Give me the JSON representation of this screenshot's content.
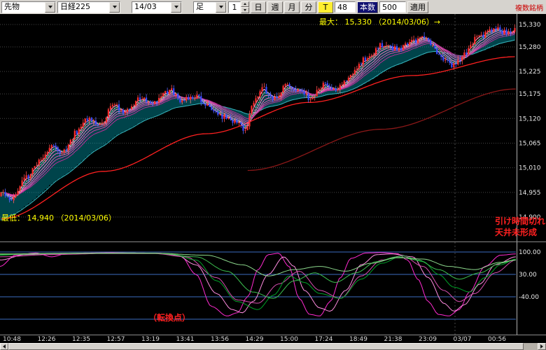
{
  "toolbar": {
    "instrument": "先物",
    "symbol": "日経225",
    "contract": "14/03",
    "bar_type": "足",
    "interval": "1",
    "period_buttons": [
      "日",
      "週",
      "月",
      "分"
    ],
    "tick_button": "T",
    "tick_interval": "48",
    "count_label": "本数",
    "count_value": "500",
    "apply": "適用",
    "multi_symbol": "複数銘柄"
  },
  "main_chart": {
    "max_annotation": "最大： 15,330 （2014/03/06）→",
    "min_annotation": "最低： 14,940 （2014/03/06）",
    "note_lines": [
      "引け時間切れ",
      "天井未形成"
    ],
    "y_axis_labels": [
      "15,330",
      "15,280",
      "15,225",
      "15,175",
      "15,120",
      "15,065",
      "15,010",
      "14,955",
      "14,900"
    ],
    "y_axis_values": [
      15330,
      15280,
      15225,
      15175,
      15120,
      15065,
      15010,
      14955,
      14900
    ]
  },
  "oscillator": {
    "y_axis_labels": [
      "100.00",
      "30.00",
      "-40.00"
    ],
    "y_axis_values": [
      100,
      30,
      -40
    ],
    "annotation": "（転換点）"
  },
  "time_axis": {
    "labels": [
      "10:48",
      "12:26",
      "12:35",
      "12:57",
      "13:19",
      "13:41",
      "13:56",
      "14:29",
      "15:00",
      "17:24",
      "18:49",
      "21:38",
      "23:09",
      "03/07",
      "00:56"
    ]
  },
  "chart_data": {
    "type": "candlestick",
    "candle_count": 245,
    "y_range": [
      14860,
      15345
    ],
    "price_anchors": [
      [
        0.0,
        14952
      ],
      [
        0.02,
        14940
      ],
      [
        0.05,
        14992
      ],
      [
        0.08,
        15032
      ],
      [
        0.1,
        15062
      ],
      [
        0.12,
        15046
      ],
      [
        0.15,
        15092
      ],
      [
        0.17,
        15122
      ],
      [
        0.19,
        15102
      ],
      [
        0.22,
        15150
      ],
      [
        0.24,
        15136
      ],
      [
        0.27,
        15162
      ],
      [
        0.3,
        15156
      ],
      [
        0.33,
        15182
      ],
      [
        0.35,
        15162
      ],
      [
        0.38,
        15168
      ],
      [
        0.41,
        15142
      ],
      [
        0.44,
        15120
      ],
      [
        0.46,
        15108
      ],
      [
        0.475,
        15094
      ],
      [
        0.49,
        15152
      ],
      [
        0.51,
        15186
      ],
      [
        0.53,
        15166
      ],
      [
        0.56,
        15196
      ],
      [
        0.58,
        15186
      ],
      [
        0.6,
        15166
      ],
      [
        0.63,
        15196
      ],
      [
        0.65,
        15182
      ],
      [
        0.68,
        15216
      ],
      [
        0.71,
        15256
      ],
      [
        0.74,
        15282
      ],
      [
        0.77,
        15276
      ],
      [
        0.8,
        15292
      ],
      [
        0.82,
        15302
      ],
      [
        0.84,
        15282
      ],
      [
        0.86,
        15252
      ],
      [
        0.88,
        15238
      ],
      [
        0.9,
        15262
      ],
      [
        0.93,
        15302
      ],
      [
        0.96,
        15322
      ],
      [
        0.98,
        15312
      ],
      [
        1.0,
        15322
      ]
    ],
    "ma_long_red_anchors": [
      [
        0,
        14896
      ],
      [
        0.2,
        15002
      ],
      [
        0.4,
        15086
      ],
      [
        0.6,
        15156
      ],
      [
        0.8,
        15216
      ],
      [
        1,
        15258
      ]
    ],
    "ma_long_dark_anchors": [
      [
        0,
        15004
      ],
      [
        0.5,
        15096
      ],
      [
        1,
        15186
      ]
    ],
    "ma_dark_x_range": [
      0.48,
      1
    ],
    "ribbon_spans": [
      3,
      5,
      7,
      10,
      13,
      16,
      20
    ],
    "cloud_spans": [
      4,
      40
    ],
    "green_span": 5,
    "oscillator": {
      "type": "line",
      "y_range": [
        -150,
        115
      ],
      "gridlines": [
        100,
        30,
        -40,
        -110
      ],
      "series": [
        {
          "name": "magenta-1",
          "color": "#ff2ad0",
          "anchors": [
            [
              0,
              55
            ],
            [
              0.03,
              90
            ],
            [
              0.07,
              97
            ],
            [
              0.1,
              85
            ],
            [
              0.13,
              95
            ],
            [
              0.17,
              97
            ],
            [
              0.22,
              98
            ],
            [
              0.27,
              97
            ],
            [
              0.31,
              96
            ],
            [
              0.35,
              88
            ],
            [
              0.38,
              30
            ],
            [
              0.41,
              -70
            ],
            [
              0.44,
              -100
            ],
            [
              0.46,
              -90
            ],
            [
              0.48,
              -40
            ],
            [
              0.5,
              45
            ],
            [
              0.52,
              92
            ],
            [
              0.54,
              96
            ],
            [
              0.56,
              55
            ],
            [
              0.58,
              -45
            ],
            [
              0.6,
              -95
            ],
            [
              0.62,
              -100
            ],
            [
              0.64,
              -55
            ],
            [
              0.66,
              20
            ],
            [
              0.68,
              80
            ],
            [
              0.71,
              97
            ],
            [
              0.74,
              98
            ],
            [
              0.77,
              95
            ],
            [
              0.79,
              75
            ],
            [
              0.81,
              15
            ],
            [
              0.83,
              -55
            ],
            [
              0.85,
              -95
            ],
            [
              0.87,
              -100
            ],
            [
              0.89,
              -80
            ],
            [
              0.91,
              -25
            ],
            [
              0.94,
              55
            ],
            [
              0.97,
              90
            ],
            [
              1,
              94
            ]
          ]
        },
        {
          "name": "magenta-2",
          "color": "#ff8ce0",
          "anchors": [
            [
              0,
              75
            ],
            [
              0.05,
              92
            ],
            [
              0.1,
              94
            ],
            [
              0.15,
              96
            ],
            [
              0.2,
              97
            ],
            [
              0.25,
              97
            ],
            [
              0.3,
              96
            ],
            [
              0.34,
              92
            ],
            [
              0.38,
              60
            ],
            [
              0.42,
              -30
            ],
            [
              0.45,
              -80
            ],
            [
              0.47,
              -90
            ],
            [
              0.49,
              -55
            ],
            [
              0.52,
              30
            ],
            [
              0.55,
              85
            ],
            [
              0.57,
              55
            ],
            [
              0.59,
              -20
            ],
            [
              0.62,
              -75
            ],
            [
              0.64,
              -85
            ],
            [
              0.67,
              -20
            ],
            [
              0.7,
              60
            ],
            [
              0.73,
              92
            ],
            [
              0.76,
              94
            ],
            [
              0.8,
              85
            ],
            [
              0.83,
              20
            ],
            [
              0.86,
              -60
            ],
            [
              0.88,
              -85
            ],
            [
              0.9,
              -65
            ],
            [
              0.93,
              0
            ],
            [
              0.96,
              60
            ],
            [
              1,
              85
            ]
          ]
        },
        {
          "name": "magenta-3",
          "color": "#d84fb0",
          "anchors": [
            [
              0,
              85
            ],
            [
              0.1,
              92
            ],
            [
              0.2,
              95
            ],
            [
              0.3,
              95
            ],
            [
              0.36,
              85
            ],
            [
              0.42,
              20
            ],
            [
              0.46,
              -50
            ],
            [
              0.5,
              -60
            ],
            [
              0.54,
              0
            ],
            [
              0.58,
              40
            ],
            [
              0.62,
              -20
            ],
            [
              0.66,
              -45
            ],
            [
              0.7,
              25
            ],
            [
              0.74,
              75
            ],
            [
              0.78,
              88
            ],
            [
              0.82,
              55
            ],
            [
              0.86,
              -20
            ],
            [
              0.89,
              -55
            ],
            [
              0.92,
              -30
            ],
            [
              0.96,
              35
            ],
            [
              1,
              75
            ]
          ]
        },
        {
          "name": "green-1",
          "color": "#00a028",
          "anchors": [
            [
              0,
              90
            ],
            [
              0.05,
              94
            ],
            [
              0.15,
              96
            ],
            [
              0.25,
              97
            ],
            [
              0.33,
              95
            ],
            [
              0.38,
              75
            ],
            [
              0.42,
              10
            ],
            [
              0.46,
              -55
            ],
            [
              0.5,
              -80
            ],
            [
              0.53,
              -35
            ],
            [
              0.56,
              25
            ],
            [
              0.59,
              5
            ],
            [
              0.62,
              -30
            ],
            [
              0.66,
              -45
            ],
            [
              0.7,
              15
            ],
            [
              0.74,
              65
            ],
            [
              0.78,
              88
            ],
            [
              0.82,
              70
            ],
            [
              0.85,
              30
            ],
            [
              0.88,
              -10
            ],
            [
              0.91,
              -25
            ],
            [
              0.94,
              20
            ],
            [
              0.97,
              60
            ],
            [
              1,
              78
            ]
          ]
        },
        {
          "name": "green-2",
          "color": "#3cc050",
          "anchors": [
            [
              0,
              92
            ],
            [
              0.1,
              95
            ],
            [
              0.2,
              96
            ],
            [
              0.3,
              96
            ],
            [
              0.38,
              85
            ],
            [
              0.44,
              40
            ],
            [
              0.49,
              -25
            ],
            [
              0.53,
              -45
            ],
            [
              0.57,
              10
            ],
            [
              0.61,
              35
            ],
            [
              0.65,
              5
            ],
            [
              0.69,
              35
            ],
            [
              0.73,
              70
            ],
            [
              0.77,
              85
            ],
            [
              0.81,
              75
            ],
            [
              0.85,
              45
            ],
            [
              0.89,
              15
            ],
            [
              0.93,
              35
            ],
            [
              0.97,
              65
            ],
            [
              1,
              75
            ]
          ]
        },
        {
          "name": "green-3",
          "color": "#8cd88c",
          "anchors": [
            [
              0,
              94
            ],
            [
              0.15,
              96
            ],
            [
              0.3,
              96
            ],
            [
              0.4,
              90
            ],
            [
              0.47,
              60
            ],
            [
              0.52,
              25
            ],
            [
              0.57,
              45
            ],
            [
              0.62,
              55
            ],
            [
              0.67,
              40
            ],
            [
              0.72,
              65
            ],
            [
              0.77,
              82
            ],
            [
              0.82,
              78
            ],
            [
              0.87,
              55
            ],
            [
              0.92,
              45
            ],
            [
              0.97,
              68
            ],
            [
              1,
              75
            ]
          ]
        }
      ]
    }
  },
  "colors": {
    "up": "#ff2a2a",
    "down": "#3448ff",
    "wick_up": "#ff5050",
    "wick_down": "#5868ff",
    "ribbon": [
      "#ffb0e0",
      "#ff9ad5",
      "#ff84ca",
      "#f06ec0",
      "#e058b4",
      "#cc42a8",
      "#b83098"
    ],
    "cloud": "#00b6c8",
    "cloud_edge": "#38b8c0",
    "ma_green": "#00b050",
    "ma_red": "#ff2020",
    "ma_dark": "#8b1818",
    "grid": "#464646",
    "axis_text": "#e8e8e8",
    "axis_line": "#b0b0b0",
    "osc_grid": "#3b6cc0",
    "annotation_yellow": "#ffff00",
    "annotation_red": "#ff2020"
  }
}
